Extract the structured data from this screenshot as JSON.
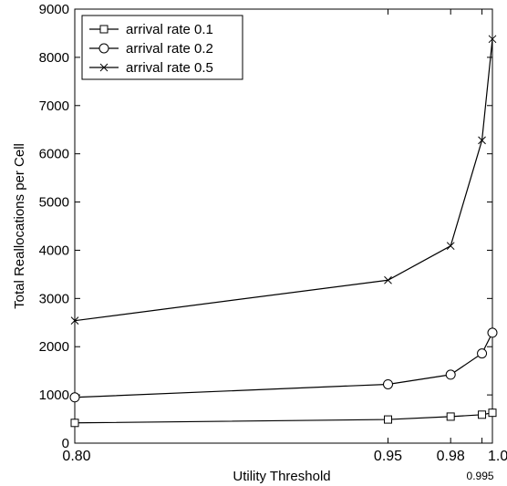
{
  "chart_data": {
    "type": "line",
    "title": "",
    "xlabel": "Utility Threshold",
    "ylabel": "Total Reallocations per Cell",
    "xlim": [
      0.8,
      1.0
    ],
    "ylim": [
      0,
      9000
    ],
    "x": [
      0.8,
      0.95,
      0.98,
      0.995,
      1.0
    ],
    "x_ticks": [
      {
        "value": 0.8,
        "label": "0.80",
        "row": 0
      },
      {
        "value": 0.95,
        "label": "0.95",
        "row": 0
      },
      {
        "value": 0.98,
        "label": "0.98",
        "row": 0
      },
      {
        "value": 0.995,
        "label": "0.995",
        "row": 1
      },
      {
        "value": 1.0,
        "label": "1.0",
        "row": 0
      }
    ],
    "y_ticks": [
      0,
      1000,
      2000,
      3000,
      4000,
      5000,
      6000,
      7000,
      8000,
      9000
    ],
    "grid": false,
    "legend_position": "top-left",
    "series": [
      {
        "name": "arrival rate 0.1",
        "marker": "square",
        "values": [
          420,
          490,
          550,
          590,
          630
        ]
      },
      {
        "name": "arrival rate 0.2",
        "marker": "circle",
        "values": [
          950,
          1220,
          1420,
          1860,
          2290
        ]
      },
      {
        "name": "arrival rate 0.5",
        "marker": "x",
        "values": [
          2540,
          3380,
          4090,
          6280,
          8380
        ]
      }
    ]
  }
}
